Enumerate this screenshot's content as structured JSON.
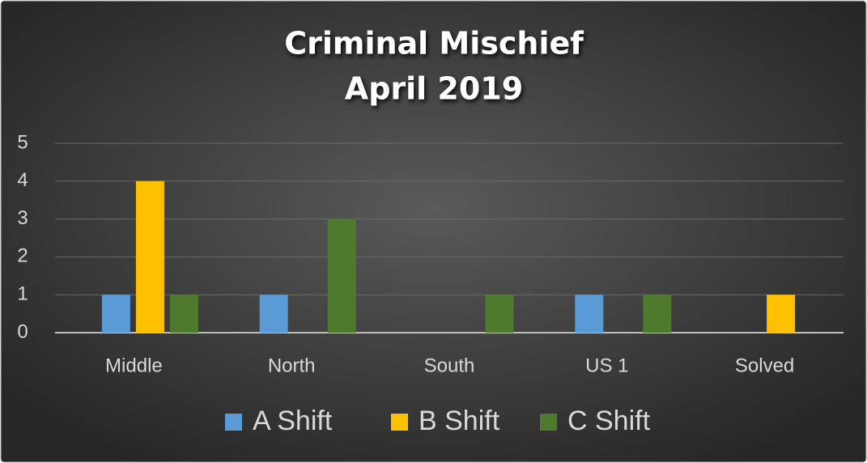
{
  "chart_data": {
    "type": "bar",
    "title": "Criminal Mischief",
    "subtitle": "April 2019",
    "categories": [
      "Middle",
      "North",
      "South",
      "US 1",
      "Solved"
    ],
    "series": [
      {
        "name": "A Shift",
        "color": "#5b9bd5",
        "values": [
          1,
          1,
          0,
          1,
          0
        ]
      },
      {
        "name": "B Shift",
        "color": "#ffc000",
        "values": [
          4,
          0,
          0,
          0,
          1
        ]
      },
      {
        "name": "C Shift",
        "color": "#4f7a2e",
        "values": [
          1,
          3,
          1,
          1,
          0
        ]
      }
    ],
    "ylim": [
      0,
      5
    ],
    "yticks": [
      0,
      1,
      2,
      3,
      4,
      5
    ],
    "grid": true,
    "legend": "bottom"
  }
}
